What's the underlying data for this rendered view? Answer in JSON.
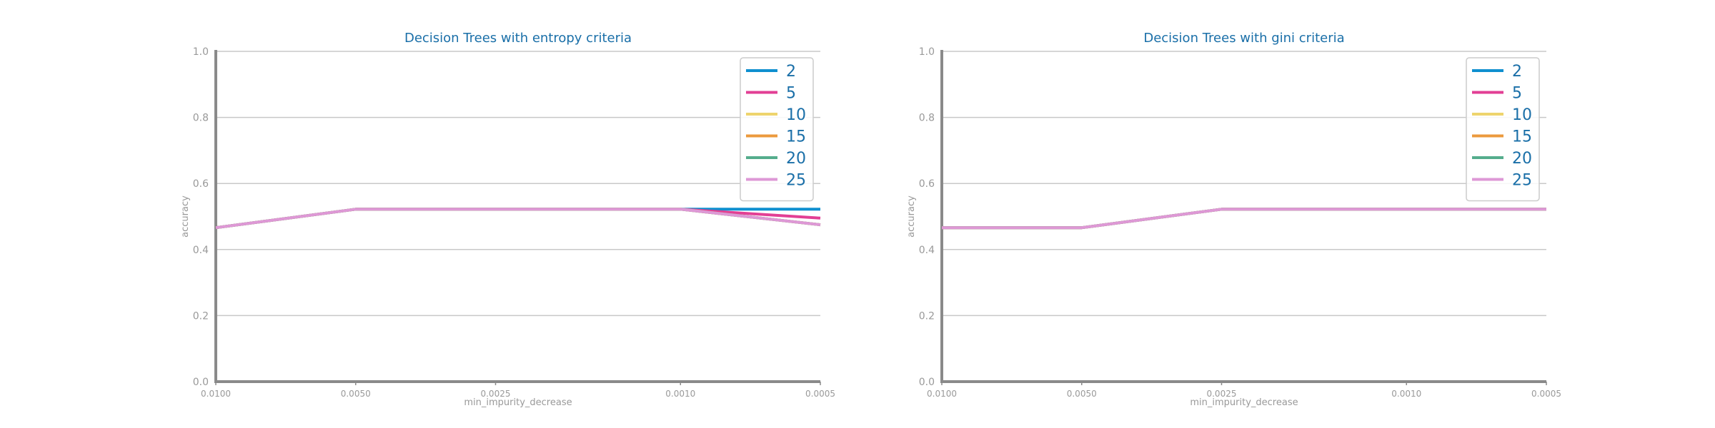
{
  "chart_data": [
    {
      "type": "line",
      "title": "Decision Trees with entropy criteria",
      "xlabel": "min_impurity_decrease",
      "ylabel": "accuracy",
      "x": [
        0.01,
        0.005,
        0.0025,
        0.001,
        0.0005
      ],
      "x_tick_labels": [
        "0.0100",
        "0.0050",
        "0.0025",
        "0.0010",
        "0.0005"
      ],
      "ylim": [
        0,
        1
      ],
      "y_ticks": [
        0.0,
        0.2,
        0.4,
        0.6,
        0.8,
        1.0
      ],
      "y_tick_labels": [
        "0.0",
        "0.2",
        "0.4",
        "0.6",
        "0.8",
        "1.0"
      ],
      "grid": "horizontal",
      "legend_position": "top-right",
      "series": [
        {
          "name": "2",
          "color": "#0f8fcf",
          "values": [
            0.466,
            0.522,
            0.522,
            0.522,
            0.522
          ]
        },
        {
          "name": "5",
          "color": "#e23f94",
          "values": [
            0.466,
            0.522,
            0.522,
            0.522,
            0.495
          ]
        },
        {
          "name": "10",
          "color": "#eed46d",
          "values": [
            0.466,
            0.522,
            0.522,
            0.522,
            0.475
          ]
        },
        {
          "name": "15",
          "color": "#ec9a3d",
          "values": [
            0.466,
            0.522,
            0.522,
            0.522,
            0.475
          ]
        },
        {
          "name": "20",
          "color": "#55ad8d",
          "values": [
            0.466,
            0.522,
            0.522,
            0.522,
            0.475
          ]
        },
        {
          "name": "25",
          "color": "#de98d6",
          "values": [
            0.466,
            0.522,
            0.522,
            0.522,
            0.475
          ]
        }
      ]
    },
    {
      "type": "line",
      "title": "Decision Trees with gini criteria",
      "xlabel": "min_impurity_decrease",
      "ylabel": "accuracy",
      "x": [
        0.01,
        0.005,
        0.0025,
        0.001,
        0.0005
      ],
      "x_tick_labels": [
        "0.0100",
        "0.0050",
        "0.0025",
        "0.0010",
        "0.0005"
      ],
      "ylim": [
        0,
        1
      ],
      "y_ticks": [
        0.0,
        0.2,
        0.4,
        0.6,
        0.8,
        1.0
      ],
      "y_tick_labels": [
        "0.0",
        "0.2",
        "0.4",
        "0.6",
        "0.8",
        "1.0"
      ],
      "grid": "horizontal",
      "legend_position": "top-right",
      "series": [
        {
          "name": "2",
          "color": "#0f8fcf",
          "values": [
            0.466,
            0.466,
            0.522,
            0.522,
            0.522
          ]
        },
        {
          "name": "5",
          "color": "#e23f94",
          "values": [
            0.466,
            0.466,
            0.522,
            0.522,
            0.522
          ]
        },
        {
          "name": "10",
          "color": "#eed46d",
          "values": [
            0.466,
            0.466,
            0.522,
            0.522,
            0.522
          ]
        },
        {
          "name": "15",
          "color": "#ec9a3d",
          "values": [
            0.466,
            0.466,
            0.522,
            0.522,
            0.522
          ]
        },
        {
          "name": "20",
          "color": "#55ad8d",
          "values": [
            0.466,
            0.466,
            0.522,
            0.522,
            0.522
          ]
        },
        {
          "name": "25",
          "color": "#de98d6",
          "values": [
            0.466,
            0.466,
            0.522,
            0.522,
            0.522
          ]
        }
      ]
    }
  ],
  "style": {
    "title_color": "#1a6fa8",
    "axis_color": "#8a8a8a",
    "grid_color": "#c8c8c8",
    "tick_text_color": "#999999",
    "legend_text_color": "#1a6fa8"
  }
}
